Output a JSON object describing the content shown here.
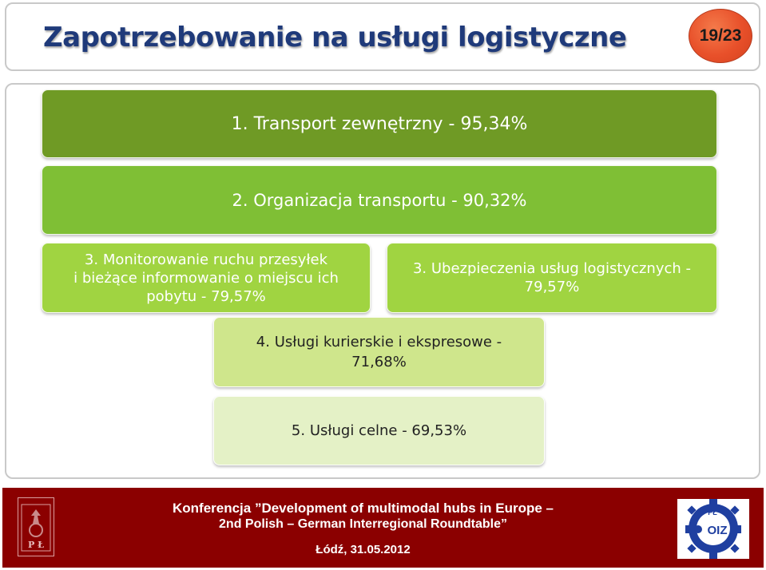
{
  "header": {
    "title": "Zapotrzebowanie na usługi logistyczne",
    "page_number": "19/23"
  },
  "items": [
    {
      "lines": [
        "1. Transport zewnętrzny - 95,34%"
      ]
    },
    {
      "lines": [
        "2. Organizacja transportu - 90,32%"
      ]
    },
    {
      "lines": [
        "3. Monitorowanie ruchu przesyłek",
        "i bieżące informowanie o miejscu ich",
        "pobytu - 79,57%"
      ]
    },
    {
      "lines": [
        "3. Ubezpieczenia usług logistycznych -",
        "79,57%"
      ]
    },
    {
      "lines": [
        "4. Usługi kurierskie i ekspresowe -",
        "71,68%"
      ]
    },
    {
      "lines": [
        "5. Usługi celne - 69,53%"
      ]
    }
  ],
  "footer": {
    "line1": "Konferencja ”Development of multimodal hubs in Europe –",
    "line2": "2nd Polish – German Interregional Roundtable”",
    "line3": "Łódź, 31.05.2012",
    "logo_left_text": "P Ł",
    "logo_right_text": "PŁ",
    "logo_right_text2": "OIZ"
  },
  "colors": {
    "title": "#1f3a7a",
    "badge": "#e8502a",
    "level1": "#6f9a25",
    "level2": "#7fbf35",
    "level3": "#a0d441",
    "level4": "#cfe68c",
    "level5": "#e4f1c6",
    "footer": "#8b0000"
  }
}
